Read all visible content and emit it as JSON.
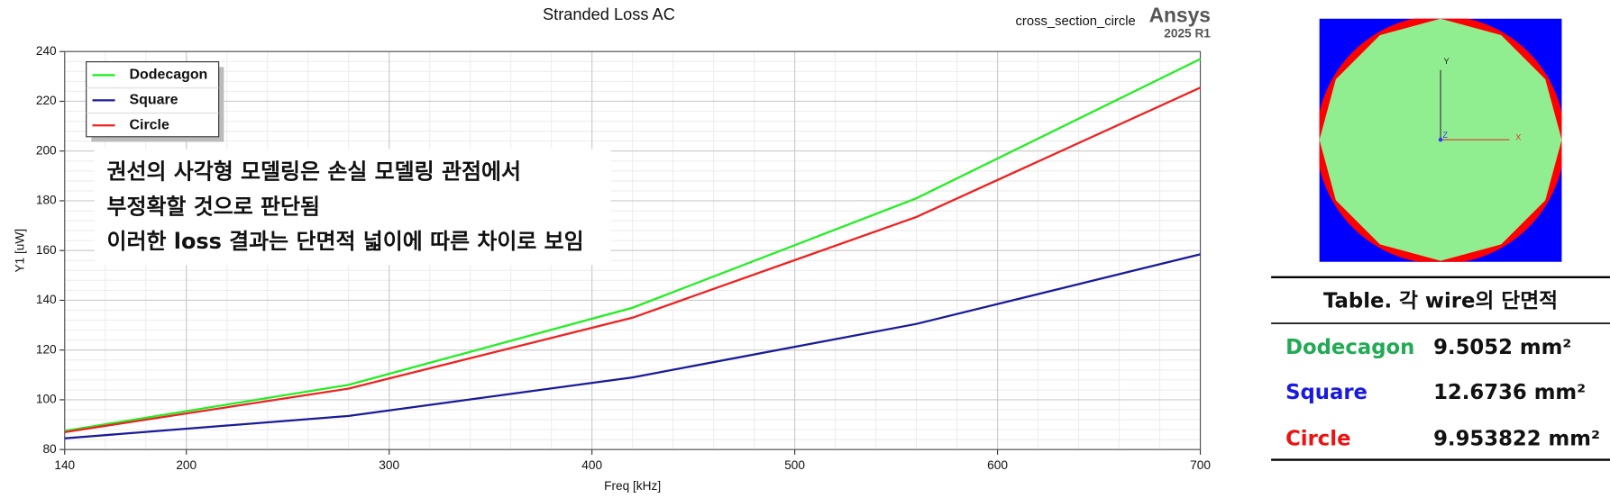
{
  "chart_data": {
    "type": "line",
    "title": "Stranded Loss AC",
    "x_label": "Freq [kHz]",
    "y_label": "Y1 [uW]",
    "x": [
      140,
      280,
      420,
      560,
      700
    ],
    "series": [
      {
        "name": "Dodecagon",
        "color": "#22ee22",
        "values": [
          87.5,
          106,
          137,
          181,
          237
        ]
      },
      {
        "name": "Square",
        "color": "#1a1a9a",
        "values": [
          84.5,
          93.5,
          109,
          130.5,
          158.5
        ]
      },
      {
        "name": "Circle",
        "color": "#ee2222",
        "values": [
          87,
          104.5,
          133,
          173.5,
          225.5
        ]
      }
    ],
    "xlim": [
      140,
      700
    ],
    "xticks": [
      140,
      200,
      300,
      400,
      500,
      600,
      700
    ],
    "ylim": [
      80,
      240
    ],
    "yticks": [
      80,
      100,
      120,
      140,
      160,
      180,
      200,
      220,
      240
    ],
    "grid": true,
    "legend": "upper left",
    "annotations": [
      "권선의 사각형 모델링은 손실 모델링 관점에서",
      "부정확할 것으로 판단됨",
      "이러한 loss 결과는 단면적 넓이에 따른 차이로 보임"
    ],
    "design_name": "cross_section_circle",
    "brand": "Ansys",
    "version": "2025 R1"
  },
  "cross_section": {
    "axis_labels": [
      "Y",
      "Z",
      "X"
    ]
  },
  "table": {
    "title": "Table. 각 wire의 단면적",
    "rows": [
      [
        "Dodecagon",
        "9.5052 mm²"
      ],
      [
        "Square",
        "12.6736 mm²"
      ],
      [
        "Circle",
        "9.953822 mm²"
      ]
    ]
  }
}
